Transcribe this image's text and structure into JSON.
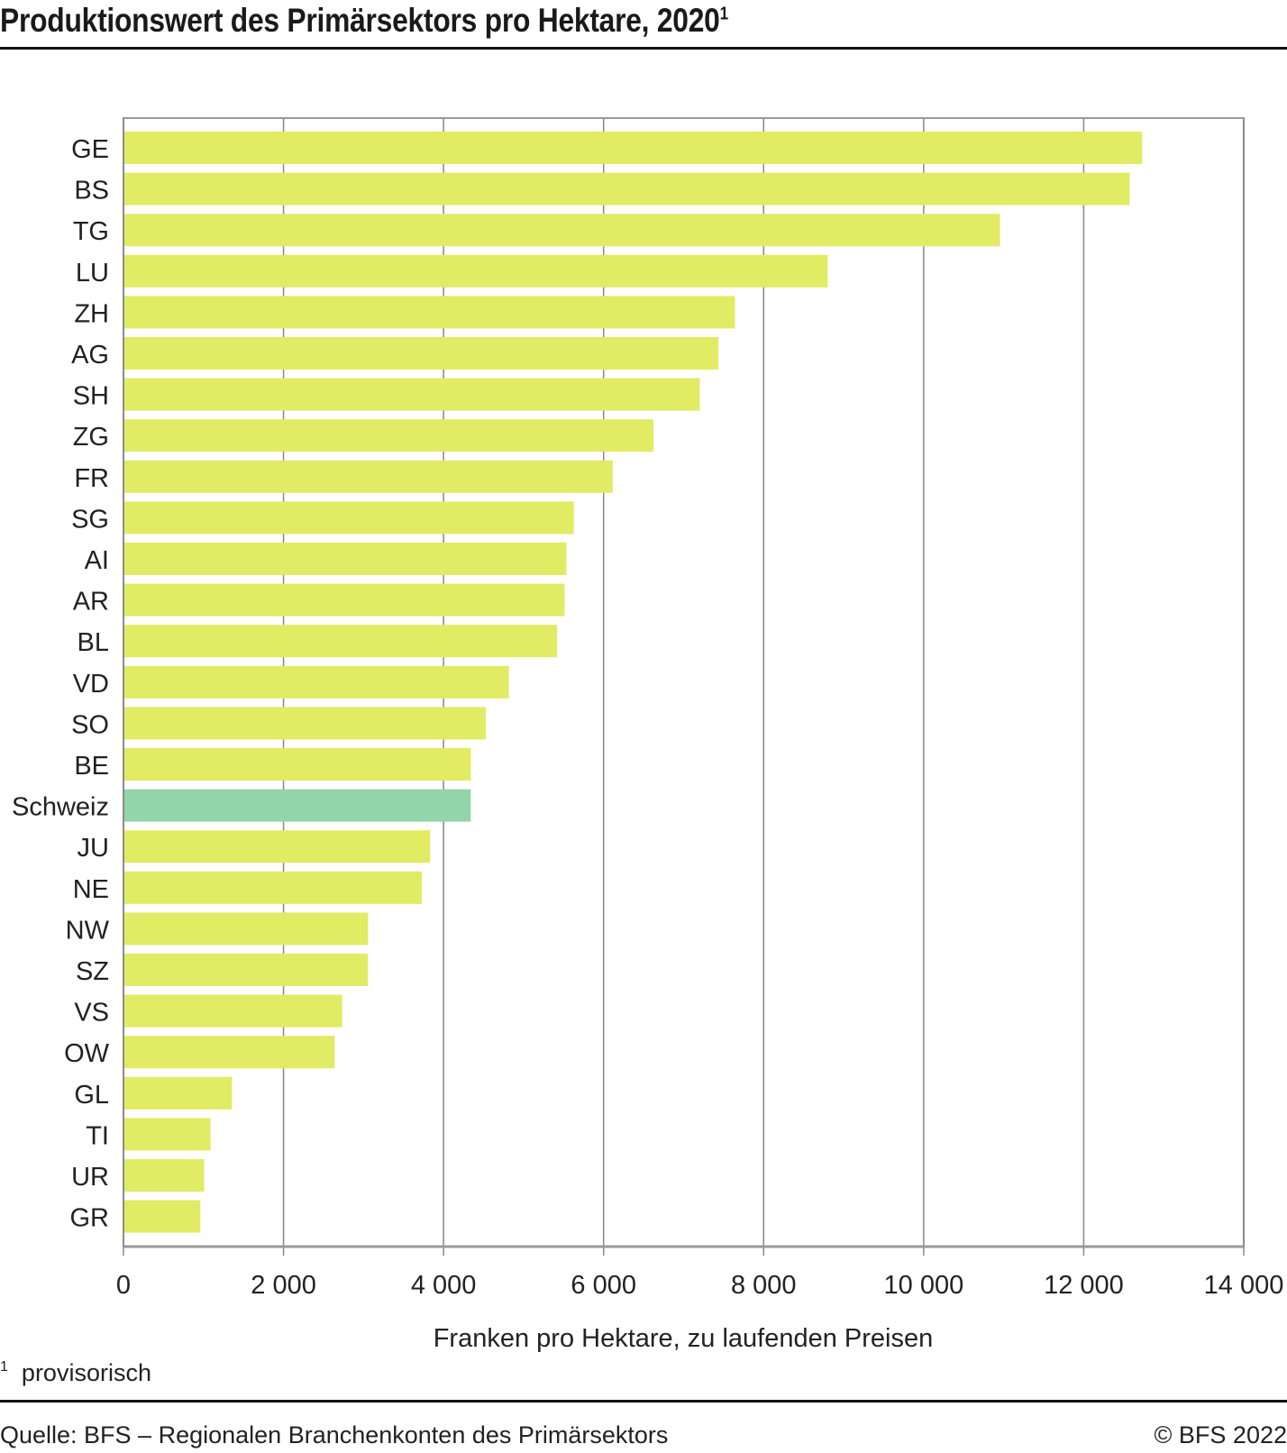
{
  "title": "Produktionswert des Primärsektors pro Hektare, 2020",
  "title_sup": "1",
  "footnote_mark": "1",
  "footnote": "provisorisch",
  "source": "Quelle: BFS – Regionalen Branchenkonten des Primärsektors",
  "copyright": "© BFS 2022",
  "colors": {
    "bar": "#e1eb63",
    "highlight": "#93d5a9",
    "grid": "#888888"
  },
  "chart_data": {
    "type": "bar",
    "orientation": "horizontal",
    "title": "Produktionswert des Primärsektors pro Hektare, 2020",
    "xlabel": "Franken pro Hektare, zu laufenden Preisen",
    "ylabel": "",
    "xlim": [
      0,
      14000
    ],
    "xticks": [
      0,
      2000,
      4000,
      6000,
      8000,
      10000,
      12000,
      14000
    ],
    "xtick_labels": [
      "0",
      "2 000",
      "4 000",
      "6 000",
      "8 000",
      "10 000",
      "12 000",
      "14 000"
    ],
    "grid": true,
    "highlight": "Schweiz",
    "categories": [
      "GE",
      "BS",
      "TG",
      "LU",
      "ZH",
      "AG",
      "SH",
      "ZG",
      "FR",
      "SG",
      "AI",
      "AR",
      "BL",
      "VD",
      "SO",
      "BE",
      "Schweiz",
      "JU",
      "NE",
      "NW",
      "SZ",
      "VS",
      "OW",
      "GL",
      "TI",
      "UR",
      "GR"
    ],
    "values": [
      12730,
      12575,
      10954,
      8800,
      7642,
      7434,
      7202,
      6623,
      6114,
      5628,
      5535,
      5512,
      5419,
      4817,
      4527,
      4342,
      4340,
      3833,
      3729,
      3057,
      3055,
      2733,
      2640,
      1355,
      1088,
      1007,
      961
    ]
  }
}
